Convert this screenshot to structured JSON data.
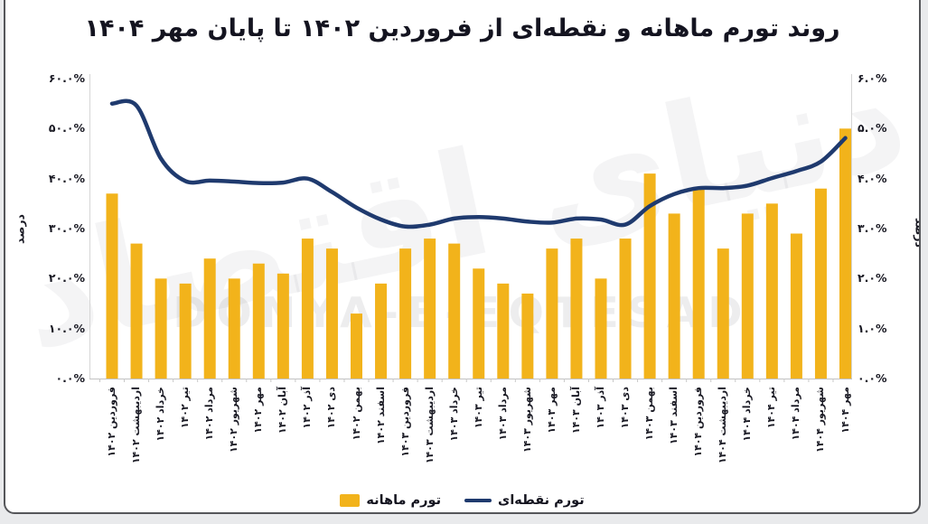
{
  "title": "روند تورم ماهانه و نقطه‌ای از فروردین ۱۴۰۲ تا پایان مهر ۱۴۰۴",
  "axes": {
    "left_title": "درصد",
    "right_title": "درصد",
    "left_ticks": [
      "۶۰.۰%",
      "۵۰.۰%",
      "۴۰.۰%",
      "۳۰.۰%",
      "۲۰.۰%",
      "۱۰.۰%",
      "۰.۰%"
    ],
    "right_ticks": [
      "۶.۰%",
      "۵.۰%",
      "۴.۰%",
      "۳.۰%",
      "۲.۰%",
      "۱.۰%",
      "۰.۰%"
    ]
  },
  "legend": {
    "bar_label": "تورم ماهانه",
    "line_label": "تورم نقطه‌ای"
  },
  "watermark": {
    "persian": "دنیای اقتصاد",
    "latin": "DONYA-E-EQTESAD"
  },
  "colors": {
    "bar": "#F2B31B",
    "line": "#1F3A6E",
    "text": "#1A1A24",
    "axis_line": "#D5D5D5",
    "tick": "#C8C8C8"
  },
  "chart_data": {
    "type": "bar",
    "subtype": "bar-and-line-dual-axis",
    "categories": [
      "فروردین ۱۴۰۲",
      "اردیبهشت ۱۴۰۲",
      "خرداد ۱۴۰۲",
      "تیر ۱۴۰۲",
      "مرداد ۱۴۰۲",
      "شهریور ۱۴۰۲",
      "مهر ۱۴۰۲",
      "آبان ۱۴۰۲",
      "آذر ۱۴۰۲",
      "دی ۱۴۰۲",
      "بهمن ۱۴۰۲",
      "اسفند ۱۴۰۲",
      "فروردین ۱۴۰۳",
      "اردیبهشت ۱۴۰۳",
      "خرداد ۱۴۰۳",
      "تیر ۱۴۰۳",
      "مرداد ۱۴۰۳",
      "شهریور ۱۴۰۳",
      "مهر ۱۴۰۳",
      "آبان ۱۴۰۳",
      "آذر ۱۴۰۳",
      "دی ۱۴۰۳",
      "بهمن ۱۴۰۳",
      "اسفند ۱۴۰۳",
      "فروردین ۱۴۰۴",
      "اردیبهشت ۱۴۰۴",
      "خرداد ۱۴۰۴",
      "تیر ۱۴۰۴",
      "مرداد ۱۴۰۴",
      "شهریور ۱۴۰۴",
      "مهر ۱۴۰۴"
    ],
    "series": [
      {
        "name": "تورم ماهانه",
        "type": "bar",
        "axis": "right",
        "values": [
          3.7,
          2.7,
          2.0,
          1.9,
          2.4,
          2.0,
          2.3,
          2.1,
          2.8,
          2.6,
          1.3,
          1.9,
          2.6,
          2.8,
          2.7,
          2.2,
          1.9,
          1.7,
          2.6,
          2.8,
          2.0,
          2.8,
          4.1,
          3.3,
          3.8,
          2.6,
          3.3,
          3.5,
          2.9,
          3.8,
          5.0
        ]
      },
      {
        "name": "تورم نقطه‌ای",
        "type": "line",
        "axis": "left",
        "values": [
          55.0,
          54.6,
          44.0,
          39.5,
          39.6,
          39.4,
          39.1,
          39.2,
          40.0,
          37.3,
          34.2,
          31.8,
          30.4,
          30.8,
          32.0,
          32.3,
          32.0,
          31.4,
          31.2,
          32.0,
          31.8,
          30.8,
          34.5,
          36.9,
          38.1,
          38.1,
          38.6,
          40.1,
          41.5,
          43.4,
          48.1
        ]
      }
    ],
    "left_axis": {
      "min": 0,
      "max": 60,
      "step": 10,
      "unit": "%",
      "title": "درصد"
    },
    "right_axis": {
      "min": 0,
      "max": 6,
      "step": 1,
      "unit": "%",
      "title": "درصد"
    },
    "grid": false,
    "legend_position": "bottom"
  }
}
